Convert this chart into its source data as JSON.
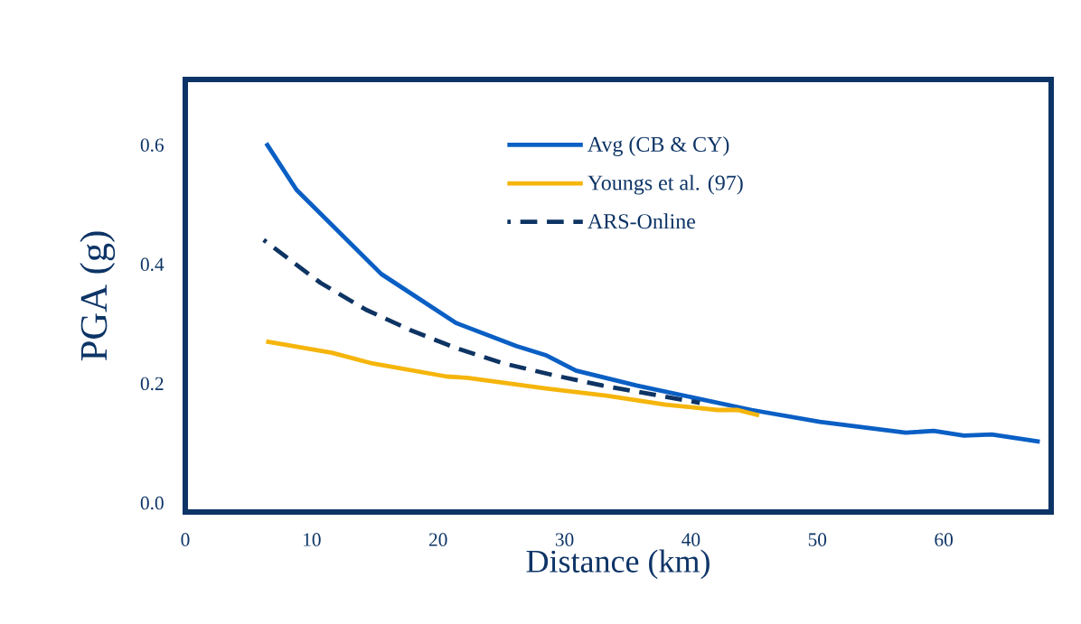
{
  "chart_data": {
    "type": "line",
    "xlabel": "Distance (km)",
    "ylabel": "PGA (g)",
    "xlim": [
      0,
      68.5
    ],
    "ylim": [
      -0.015,
      0.71
    ],
    "xticks": [
      0,
      10,
      20,
      30,
      40,
      50,
      60
    ],
    "yticks": [
      {
        "value": 0,
        "label": "0.0"
      },
      {
        "value": 0.2,
        "label": "0.2"
      },
      {
        "value": 0.4,
        "label": "0.4"
      },
      {
        "value": 0.6,
        "label": "0.6"
      }
    ],
    "grid": false,
    "legend": "top right",
    "marker": "none",
    "series": [
      {
        "name": "Avg (CB & CY)",
        "color": "#0a5fc4",
        "line_style": "solid",
        "x": [
          6.4,
          8.8,
          15.5,
          21.4,
          26.2,
          28.5,
          30.9,
          35.7,
          44.8,
          50.2,
          57.0,
          59.2,
          61.6,
          63.8,
          67.6
        ],
        "values": [
          0.603,
          0.525,
          0.384,
          0.302,
          0.263,
          0.248,
          0.222,
          0.197,
          0.156,
          0.136,
          0.118,
          0.121,
          0.113,
          0.115,
          0.103
        ]
      },
      {
        "name": "Youngs et al. (97)",
        "color": "#f5b50c",
        "line_style": "solid",
        "x": [
          6.4,
          11.6,
          14.8,
          20.7,
          22.3,
          28.5,
          33.3,
          38.0,
          42.1,
          43.7,
          45.4
        ],
        "values": [
          0.271,
          0.252,
          0.234,
          0.212,
          0.21,
          0.192,
          0.18,
          0.165,
          0.156,
          0.156,
          0.147
        ]
      },
      {
        "name": "ARS-Online",
        "color": "#0e3463",
        "line_style": "dashed",
        "x": [
          6.2,
          10.7,
          14.3,
          17.8,
          21.4,
          25.2,
          29.0,
          33.0,
          40.7
        ],
        "values": [
          0.441,
          0.369,
          0.324,
          0.29,
          0.26,
          0.234,
          0.215,
          0.197,
          0.168
        ]
      }
    ]
  }
}
